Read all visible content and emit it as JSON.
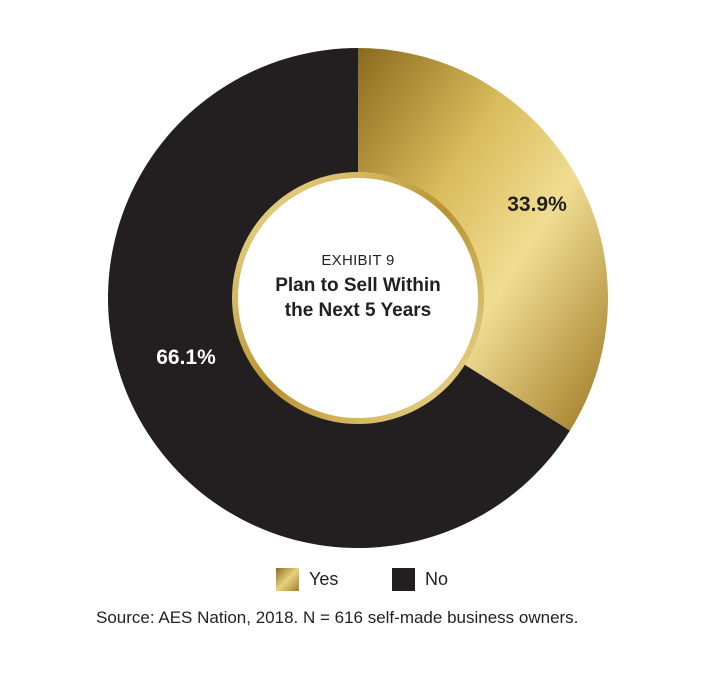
{
  "chart_data": {
    "type": "pie",
    "donut": true,
    "exhibit": "EXHIBIT 9",
    "title": "Plan to Sell Within the Next 5 Years",
    "title_lines": [
      "Plan to Sell Within",
      "the Next 5 Years"
    ],
    "slices": [
      {
        "label": "Yes",
        "value": 33.9,
        "display": "33.9%",
        "color": "#c9a53c"
      },
      {
        "label": "No",
        "value": 66.1,
        "display": "66.1%",
        "color": "#231f20"
      }
    ],
    "legend_position": "bottom"
  },
  "source": "Source: AES Nation, 2018. N = 616 self-made business owners."
}
